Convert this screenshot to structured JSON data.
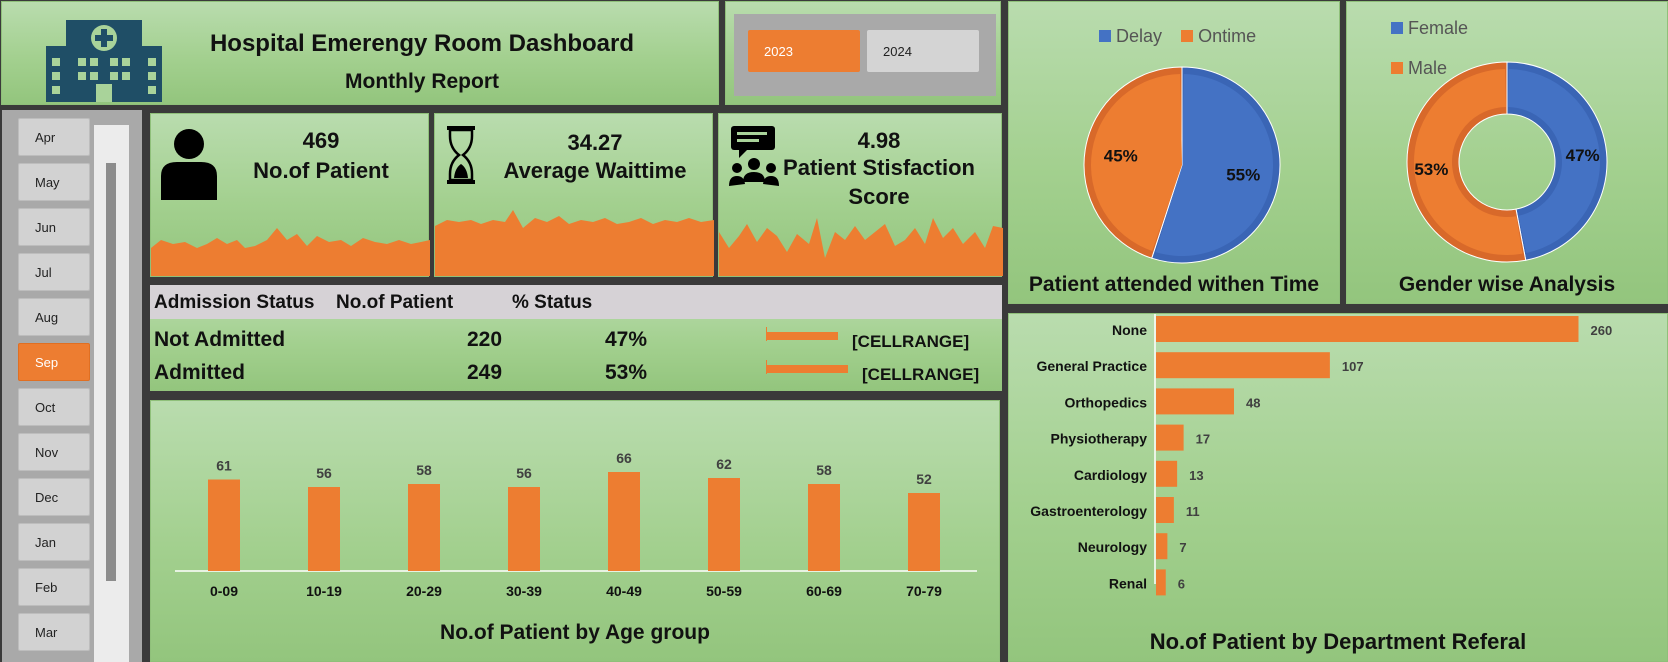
{
  "header": {
    "title": "Hospital Emerengy Room Dashboard",
    "subtitle": "Monthly Report"
  },
  "years": {
    "items": [
      "2023",
      "2024"
    ],
    "selected": "2023"
  },
  "months": {
    "items": [
      "Apr",
      "May",
      "Jun",
      "Jul",
      "Aug",
      "Sep",
      "Oct",
      "Nov",
      "Dec",
      "Jan",
      "Feb",
      "Mar"
    ],
    "selected": "Sep"
  },
  "kpis": {
    "patients": {
      "value": "469",
      "label": "No.of Patient"
    },
    "wait": {
      "value": "34.27",
      "label": "Average Waittime"
    },
    "satisfaction": {
      "value": "4.98",
      "label1": "Patient Stisfaction",
      "label2": "Score"
    }
  },
  "admission": {
    "headers": [
      "Admission Status",
      "No.of Patient",
      "% Status"
    ],
    "rows": [
      {
        "status": "Not Admitted",
        "count": "220",
        "pct": "47%",
        "bar_fraction": 0.47,
        "label": "[CELLRANGE]"
      },
      {
        "status": "Admitted",
        "count": "249",
        "pct": "53%",
        "bar_fraction": 0.53,
        "label": "[CELLRANGE]"
      }
    ]
  },
  "charts": {
    "timely": {
      "title": "Patient attended withen Time",
      "legend": [
        "Delay",
        "Ontime"
      ],
      "slices": [
        {
          "name": "Delay",
          "value": 55,
          "label": "55%"
        },
        {
          "name": "Ontime",
          "value": 45,
          "label": "45%"
        }
      ]
    },
    "gender": {
      "title": "Gender wise Analysis",
      "legend": [
        "Female",
        "Male"
      ],
      "slices": [
        {
          "name": "Female",
          "value": 47,
          "label": "47%"
        },
        {
          "name": "Male",
          "value": 53,
          "label": "53%"
        }
      ]
    },
    "age": {
      "title": "No.of Patient by Age group"
    },
    "department": {
      "title": "No.of Patient by Department Referal"
    }
  },
  "colors": {
    "blue": "#4472c4",
    "orange": "#ed7d31",
    "green": "#a9d39a",
    "dark_teal": "#1f4e66"
  },
  "chart_data": [
    {
      "type": "bar",
      "title": "No.of Patient by Age group",
      "categories": [
        "0-09",
        "10-19",
        "20-29",
        "30-39",
        "40-49",
        "50-59",
        "60-69",
        "70-79"
      ],
      "values": [
        61,
        56,
        58,
        56,
        66,
        62,
        58,
        52
      ],
      "grid": false
    },
    {
      "type": "bar",
      "orientation": "horizontal",
      "title": "No.of Patient by Department Referal",
      "categories": [
        "None",
        "General Practice",
        "Orthopedics",
        "Physiotherapy",
        "Cardiology",
        "Gastroenterology",
        "Neurology",
        "Renal"
      ],
      "values": [
        260,
        107,
        48,
        17,
        13,
        11,
        7,
        6
      ],
      "grid": false
    },
    {
      "type": "pie",
      "title": "Patient attended withen Time",
      "categories": [
        "Delay",
        "Ontime"
      ],
      "values": [
        55,
        45
      ],
      "legend": "top"
    },
    {
      "type": "pie",
      "title": "Gender wise Analysis",
      "categories": [
        "Female",
        "Male"
      ],
      "values": [
        47,
        53
      ],
      "legend": "top-left"
    }
  ]
}
